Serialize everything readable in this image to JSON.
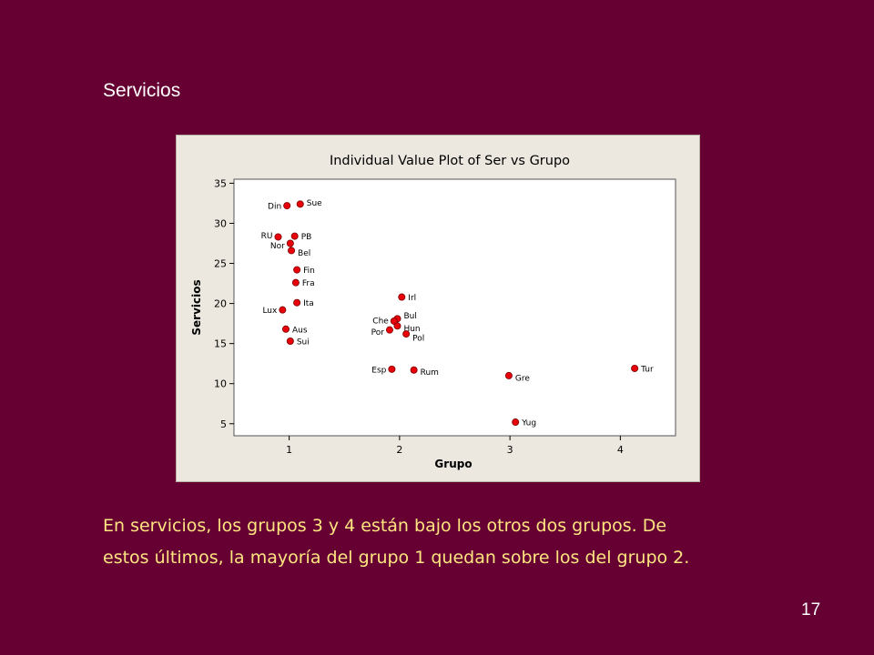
{
  "slide": {
    "title": "Servicios",
    "caption_line1": "En servicios, los grupos 3 y 4 están bajo los otros dos grupos. De",
    "caption_line2": "estos últimos, la mayoría del grupo 1 quedan sobre los del grupo 2.",
    "page_number": "17"
  },
  "colors": {
    "background": "#660033",
    "panel": "#ece8df",
    "point": "#e8000b",
    "caption_text": "#ffe680"
  },
  "chart_data": {
    "type": "scatter",
    "title": "Individual Value Plot of Ser vs Grupo",
    "xlabel": "Grupo",
    "ylabel": "Servicios",
    "xlim": [
      0.5,
      4.5
    ],
    "ylim": [
      3.5,
      35.5
    ],
    "xticks": [
      "1",
      "2",
      "3",
      "4"
    ],
    "yticks": [
      "5",
      "10",
      "15",
      "20",
      "25",
      "30",
      "35"
    ],
    "grid": false,
    "points": [
      {
        "label": "Din",
        "x": 0.98,
        "y": 32.2
      },
      {
        "label": "Sue",
        "x": 1.1,
        "y": 32.4
      },
      {
        "label": "RU",
        "x": 0.9,
        "y": 28.3
      },
      {
        "label": "PB",
        "x": 1.05,
        "y": 28.4
      },
      {
        "label": "Nor",
        "x": 1.01,
        "y": 27.5
      },
      {
        "label": "Bel",
        "x": 1.02,
        "y": 26.6
      },
      {
        "label": "Fin",
        "x": 1.07,
        "y": 24.2
      },
      {
        "label": "Fra",
        "x": 1.06,
        "y": 22.6
      },
      {
        "label": "Ita",
        "x": 1.07,
        "y": 20.1
      },
      {
        "label": "Lux",
        "x": 0.94,
        "y": 19.2
      },
      {
        "label": "Aus",
        "x": 0.97,
        "y": 16.8
      },
      {
        "label": "Sui",
        "x": 1.01,
        "y": 15.3
      },
      {
        "label": "Irl",
        "x": 2.02,
        "y": 20.8
      },
      {
        "label": "Bul",
        "x": 1.98,
        "y": 18.1
      },
      {
        "label": "Che",
        "x": 1.95,
        "y": 17.8
      },
      {
        "label": "Hun",
        "x": 1.98,
        "y": 17.2
      },
      {
        "label": "Por",
        "x": 1.91,
        "y": 16.7
      },
      {
        "label": "Pol",
        "x": 2.06,
        "y": 16.2
      },
      {
        "label": "Esp",
        "x": 1.93,
        "y": 11.8
      },
      {
        "label": "Rum",
        "x": 2.13,
        "y": 11.7
      },
      {
        "label": "Gre",
        "x": 2.99,
        "y": 11.0
      },
      {
        "label": "Tur",
        "x": 4.13,
        "y": 11.9
      },
      {
        "label": "Yug",
        "x": 3.05,
        "y": 5.2
      }
    ]
  }
}
